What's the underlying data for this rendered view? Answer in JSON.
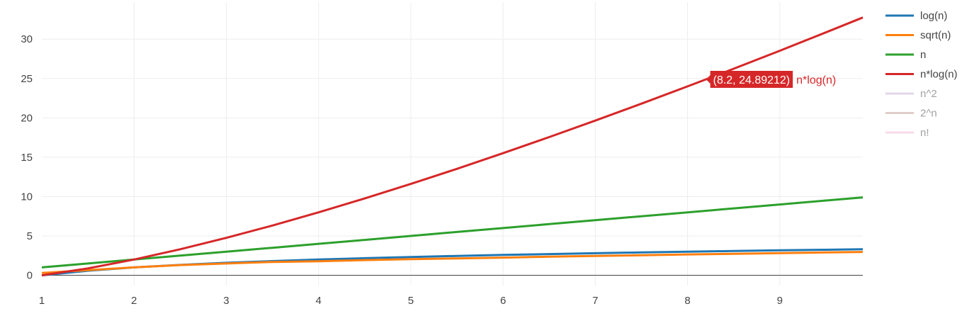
{
  "chart_data": {
    "type": "line",
    "title": "",
    "xlabel": "",
    "ylabel": "",
    "xlim": [
      1,
      9.9
    ],
    "ylim": [
      -1.3,
      34.7
    ],
    "xticks": [
      1,
      2,
      3,
      4,
      5,
      6,
      7,
      8,
      9
    ],
    "yticks": [
      0,
      5,
      10,
      15,
      20,
      25,
      30
    ],
    "grid": true,
    "legend_position": "top-right",
    "series": [
      {
        "name": "log(n)",
        "color": "#1f77b4",
        "visible": true,
        "x": [
          1,
          1.5,
          2,
          2.5,
          3,
          3.5,
          4,
          4.5,
          5,
          5.5,
          6,
          6.5,
          7,
          7.5,
          8,
          8.5,
          9,
          9.5,
          9.9
        ],
        "y": [
          0,
          0.585,
          1,
          1.322,
          1.585,
          1.807,
          2,
          2.17,
          2.322,
          2.459,
          2.585,
          2.7,
          2.807,
          2.907,
          3,
          3.087,
          3.17,
          3.248,
          3.308
        ]
      },
      {
        "name": "sqrt(n)",
        "color": "#ff7f0e",
        "visible": true,
        "x": [
          1,
          1.5,
          2,
          2.5,
          3,
          3.5,
          4,
          4.5,
          5,
          5.5,
          6,
          6.5,
          7,
          7.5,
          8,
          8.5,
          9,
          9.5,
          9.9
        ],
        "y": [
          0.3,
          0.65,
          1,
          1.3,
          1.5,
          1.7,
          1.78,
          1.93,
          2.05,
          2.15,
          2.25,
          2.36,
          2.45,
          2.55,
          2.65,
          2.73,
          2.82,
          2.9,
          2.97
        ]
      },
      {
        "name": "n",
        "color": "#2ca02c",
        "visible": true,
        "x": [
          1,
          1.5,
          2,
          2.5,
          3,
          3.5,
          4,
          4.5,
          5,
          5.5,
          6,
          6.5,
          7,
          7.5,
          8,
          8.5,
          9,
          9.5,
          9.9
        ],
        "y": [
          1,
          1.5,
          2,
          2.5,
          3,
          3.5,
          4,
          4.5,
          5,
          5.5,
          6,
          6.5,
          7,
          7.5,
          8,
          8.5,
          9,
          9.5,
          9.9
        ]
      },
      {
        "name": "n*log(n)",
        "color": "#d62728",
        "visible": true,
        "x": [
          1,
          1.5,
          2,
          2.5,
          3,
          3.5,
          4,
          4.5,
          5,
          5.5,
          6,
          6.5,
          7,
          7.5,
          8,
          8.2,
          8.5,
          9,
          9.5,
          9.9
        ],
        "y": [
          0,
          0.877,
          2,
          3.305,
          4.755,
          6.326,
          8,
          9.765,
          11.61,
          13.527,
          15.51,
          17.553,
          19.651,
          21.802,
          24,
          24.892,
          26.24,
          28.529,
          30.856,
          32.746
        ]
      },
      {
        "name": "n^2",
        "color": "#c5b0d5",
        "visible": false
      },
      {
        "name": "2^n",
        "color": "#c49c94",
        "visible": false
      },
      {
        "name": "n!",
        "color": "#f7b6d2",
        "visible": false
      }
    ],
    "hover": {
      "x": 8.2,
      "y": 24.89212,
      "label": "(8.2, 24.89212)",
      "series": "n*log(n)",
      "color": "#d62728"
    }
  }
}
